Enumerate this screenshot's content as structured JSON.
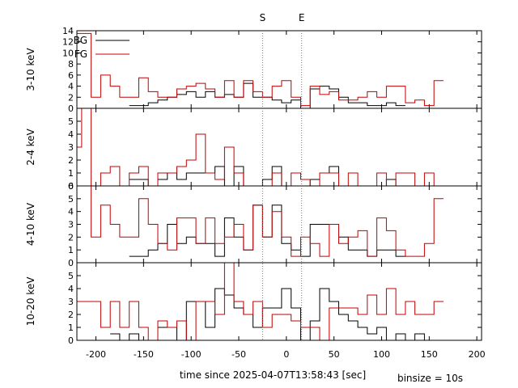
{
  "chart_data": {
    "type": "histogram-step",
    "xlabel": "time since 2025-04-07T13:58:43 [sec]",
    "binsize_label": "binsize = 10s",
    "xlim": [
      -220,
      205
    ],
    "xticks": [
      -200,
      -150,
      -100,
      -50,
      0,
      50,
      100,
      150,
      200
    ],
    "markers": [
      {
        "label": "S",
        "x": -25
      },
      {
        "label": "E",
        "x": 16
      }
    ],
    "legend": [
      {
        "name": "BG",
        "color": "#000000"
      },
      {
        "name": "FG",
        "color": "#c00000"
      }
    ],
    "bin_edges_start": -225,
    "bin_width": 10,
    "panels": [
      {
        "ylabel": "3-10 keV",
        "ylim": [
          0,
          14
        ],
        "yticks": [
          0,
          2,
          4,
          6,
          8,
          10,
          12,
          14
        ],
        "bg": [
          null,
          null,
          null,
          null,
          null,
          null,
          0.5,
          0.5,
          1,
          1.5,
          2,
          2.5,
          3,
          2,
          3,
          2,
          2.5,
          2,
          4.5,
          2,
          2,
          1.5,
          1,
          1.5,
          0,
          3.5,
          4,
          3.5,
          2,
          1,
          1,
          0.5,
          0.5,
          1,
          0.5,
          null,
          null,
          null,
          null
        ],
        "fg": [
          13.5,
          13.5,
          2,
          6,
          4,
          2,
          2,
          5.5,
          3,
          2,
          2,
          3.5,
          4,
          4.5,
          3.5,
          2,
          5,
          2,
          5,
          3,
          2,
          4,
          5,
          2,
          0.5,
          4,
          2.5,
          3,
          1.5,
          1.5,
          2,
          3,
          2,
          4,
          4,
          1,
          1.5,
          0.5,
          5
        ]
      },
      {
        "ylabel": "2-4 keV",
        "ylim": [
          0,
          6
        ],
        "yticks": [
          0,
          1,
          2,
          3,
          4,
          5
        ],
        "bg": [
          null,
          null,
          null,
          null,
          null,
          null,
          0.5,
          0.5,
          0,
          0.5,
          1,
          0.5,
          1,
          1,
          1,
          1.5,
          0,
          1.5,
          0,
          0,
          0.5,
          1.5,
          0,
          0,
          0,
          0.5,
          1,
          1.5,
          0,
          0,
          0,
          0,
          0,
          0.5,
          0,
          0,
          0,
          0,
          0
        ],
        "fg": [
          3,
          7,
          0,
          1,
          1.5,
          0,
          1,
          1.5,
          0,
          1,
          1,
          1.5,
          2,
          4,
          1,
          0.5,
          3,
          1,
          0,
          0,
          0,
          1,
          0,
          1,
          0.5,
          0,
          1,
          1,
          0,
          1,
          0,
          0,
          1,
          0,
          1,
          1,
          0,
          1,
          0
        ]
      },
      {
        "ylabel": "4-10 keV",
        "ylim": [
          0,
          6
        ],
        "yticks": [
          0,
          1,
          2,
          3,
          4,
          5,
          6
        ],
        "bg": [
          null,
          null,
          null,
          null,
          null,
          null,
          0.5,
          0.5,
          1,
          1.5,
          3,
          1.5,
          2,
          1.5,
          1.5,
          0.5,
          3.5,
          2,
          1,
          4.5,
          2,
          4.5,
          1.5,
          1,
          0.5,
          3,
          3,
          3,
          2,
          1,
          1,
          0.5,
          1,
          1,
          0.5,
          null,
          null,
          null,
          null
        ],
        "fg": [
          7,
          7,
          2,
          4.5,
          3,
          2,
          2,
          5,
          3,
          1.5,
          1,
          3.5,
          3.5,
          1.5,
          3.5,
          1.5,
          2,
          3,
          1,
          4.5,
          2,
          4,
          2,
          0.5,
          2,
          1.5,
          0.5,
          3,
          1.5,
          2,
          2.5,
          0.5,
          3.5,
          2.5,
          1,
          0.5,
          0.5,
          1.5,
          5
        ]
      },
      {
        "ylabel": "10-20 keV",
        "ylim": [
          0,
          6
        ],
        "yticks": [
          0,
          1,
          2,
          3,
          4,
          5
        ],
        "bg": [
          null,
          null,
          null,
          null,
          0.5,
          0,
          0.5,
          0,
          0,
          1,
          1,
          0,
          3,
          3,
          1,
          4,
          3.5,
          2.5,
          2,
          1,
          2.5,
          2.5,
          4,
          2.5,
          0,
          1.5,
          4,
          3,
          2,
          1.5,
          1,
          0.5,
          1,
          0,
          0.5,
          0,
          0.5,
          0,
          0
        ],
        "fg": [
          3,
          3,
          3,
          1,
          3,
          1,
          3,
          1,
          0,
          1.5,
          1,
          1.5,
          0,
          3,
          3,
          2,
          6,
          3,
          2,
          3,
          1,
          2,
          2,
          1.5,
          1,
          1,
          0,
          2.5,
          2.5,
          2.5,
          2,
          3.5,
          2,
          4,
          2,
          3,
          2,
          2,
          3
        ]
      }
    ]
  }
}
